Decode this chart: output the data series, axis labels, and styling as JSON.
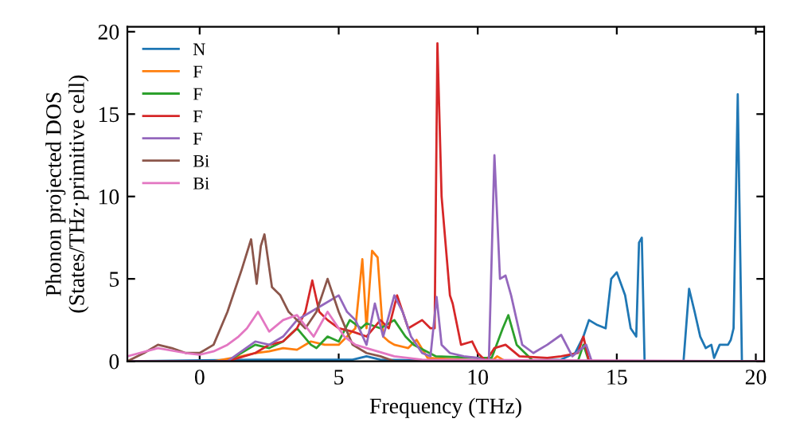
{
  "chart_data": {
    "type": "line",
    "xlabel": "Frequency (THz)",
    "ylabel": "Phonon projected DOS\n(States/THz·primitive cell)",
    "xlim": [
      -2.6,
      20.3
    ],
    "ylim": [
      0,
      20.3
    ],
    "xticks": [
      0,
      5,
      10,
      15,
      20
    ],
    "yticks": [
      0,
      5,
      10,
      15,
      20
    ],
    "grid": false,
    "legend": "top left",
    "marker": "none",
    "line_style": "solid",
    "series": [
      {
        "name": "N",
        "color": "#1f77b4",
        "x": [
          -2.6,
          2,
          5.5,
          6,
          6.5,
          10,
          13,
          13.5,
          13.8,
          14.0,
          14.3,
          14.6,
          14.8,
          15.0,
          15.3,
          15.5,
          15.7,
          15.8,
          15.9,
          16.0,
          17.4,
          17.6,
          17.8,
          18.0,
          18.2,
          18.4,
          18.5,
          18.7,
          19.0,
          19.1,
          19.2,
          19.35,
          19.5,
          20.3
        ],
        "values": [
          0,
          0.1,
          0.1,
          0.3,
          0.1,
          0,
          0.1,
          0.5,
          1.5,
          2.5,
          2.2,
          2,
          5,
          5.4,
          4,
          2,
          1.5,
          7.2,
          7.5,
          0,
          0,
          4.4,
          3,
          1.5,
          0.8,
          1,
          0.2,
          1,
          1,
          1.3,
          2,
          16.2,
          0,
          0
        ]
      },
      {
        "name": "F",
        "color": "#ff7f0e",
        "x": [
          -2.6,
          0.5,
          1.5,
          2.0,
          2.5,
          3.0,
          3.5,
          4.0,
          4.5,
          5.0,
          5.3,
          5.6,
          5.85,
          6.0,
          6.2,
          6.4,
          6.6,
          6.8,
          7.0,
          7.5,
          7.8,
          8.2,
          10.5,
          10.7,
          11.0,
          20.3
        ],
        "values": [
          0,
          0,
          0.3,
          0.5,
          0.6,
          0.8,
          0.7,
          1.2,
          1.0,
          1.0,
          1.5,
          2.0,
          6.2,
          2.0,
          6.7,
          6.3,
          1.5,
          1.2,
          1.0,
          0.8,
          1.3,
          0.2,
          0,
          0.3,
          0,
          0
        ]
      },
      {
        "name": "F",
        "color": "#2ca02c",
        "x": [
          -2.6,
          1.0,
          2.0,
          2.5,
          3.0,
          3.5,
          4.0,
          4.2,
          4.6,
          5.0,
          5.4,
          5.8,
          6.0,
          6.5,
          7.0,
          7.4,
          7.7,
          8.5,
          10.0,
          10.5,
          10.9,
          11.1,
          11.4,
          12.0,
          13.6,
          13.8,
          14.0,
          20.3
        ],
        "values": [
          0,
          0,
          1.0,
          0.8,
          1.2,
          2.0,
          1.0,
          0.8,
          1.5,
          1.2,
          2.5,
          2.0,
          2.3,
          2.0,
          2.5,
          1.5,
          1.0,
          0.3,
          0.2,
          0.2,
          2.0,
          2.8,
          1.0,
          0,
          0,
          1.0,
          0,
          0
        ]
      },
      {
        "name": "F",
        "color": "#d62728",
        "x": [
          -2.6,
          1.0,
          2.0,
          2.5,
          3.0,
          3.5,
          3.8,
          4.05,
          4.3,
          4.6,
          5.0,
          5.5,
          6.0,
          6.5,
          6.8,
          7.1,
          7.5,
          8.0,
          8.3,
          8.45,
          8.55,
          8.7,
          9.0,
          9.1,
          9.4,
          9.8,
          10.0,
          10.3,
          10.6,
          11.0,
          11.5,
          12.5,
          13.0,
          13.6,
          13.8,
          14.0,
          20.3
        ],
        "values": [
          0,
          0,
          0.5,
          1.0,
          1.2,
          2.0,
          3.0,
          4.9,
          3.0,
          2.5,
          2.0,
          1.8,
          1.5,
          2.5,
          2.0,
          4.0,
          2.0,
          2.5,
          2.0,
          2.0,
          19.3,
          10.0,
          4.0,
          3.5,
          1.0,
          1.2,
          0.5,
          0,
          0.8,
          1.0,
          0.3,
          0.2,
          0.3,
          0.5,
          1.5,
          0,
          0
        ]
      },
      {
        "name": "F",
        "color": "#9467bd",
        "x": [
          -2.6,
          1.0,
          2.0,
          2.5,
          3.0,
          3.5,
          4.0,
          4.5,
          5.0,
          5.3,
          5.6,
          6.0,
          6.3,
          6.6,
          7.0,
          7.3,
          7.6,
          8.0,
          8.3,
          8.52,
          8.7,
          9.0,
          9.5,
          10.0,
          10.4,
          10.6,
          10.8,
          11.0,
          11.2,
          11.6,
          12.0,
          12.5,
          13.0,
          13.4,
          13.9,
          14.1,
          20.3
        ],
        "values": [
          0,
          0,
          1.2,
          1.0,
          1.5,
          2.5,
          3.0,
          3.5,
          4.0,
          3.0,
          2.5,
          1.0,
          3.5,
          1.5,
          4.0,
          3.0,
          1.5,
          0.5,
          0.3,
          3.9,
          1.0,
          0.5,
          0.3,
          0.2,
          0,
          12.5,
          5.0,
          5.2,
          4.0,
          1.0,
          0.5,
          1.0,
          1.6,
          0.3,
          1.0,
          0,
          0
        ]
      },
      {
        "name": "Bi",
        "color": "#8c564b",
        "x": [
          -2.6,
          -2.0,
          -1.5,
          -1.0,
          -0.5,
          0.0,
          0.5,
          1.0,
          1.5,
          1.85,
          2.05,
          2.2,
          2.33,
          2.6,
          2.9,
          3.2,
          3.5,
          3.8,
          4.2,
          4.6,
          5.0,
          5.5,
          6.0,
          6.5,
          7.0,
          20.3
        ],
        "values": [
          0,
          0.5,
          1.0,
          0.8,
          0.5,
          0.5,
          1.0,
          3.0,
          5.5,
          7.4,
          4.7,
          7.0,
          7.7,
          4.5,
          4.0,
          3.0,
          2.5,
          2.0,
          3.0,
          5.0,
          3.0,
          1.0,
          0.5,
          0.3,
          0,
          0
        ]
      },
      {
        "name": "Bi",
        "color": "#e377c2",
        "x": [
          -2.6,
          -1.5,
          -0.5,
          0.0,
          0.5,
          1.0,
          1.4,
          1.7,
          2.1,
          2.5,
          3.0,
          3.5,
          4.1,
          4.6,
          5.2,
          5.6,
          6.0,
          7.0,
          8.0,
          20.3
        ],
        "values": [
          0.3,
          0.8,
          0.5,
          0.4,
          0.6,
          1.0,
          1.5,
          2.0,
          3.0,
          1.8,
          2.5,
          2.8,
          1.5,
          3.0,
          1.5,
          1.0,
          0.8,
          0.3,
          0.1,
          0
        ]
      }
    ]
  }
}
